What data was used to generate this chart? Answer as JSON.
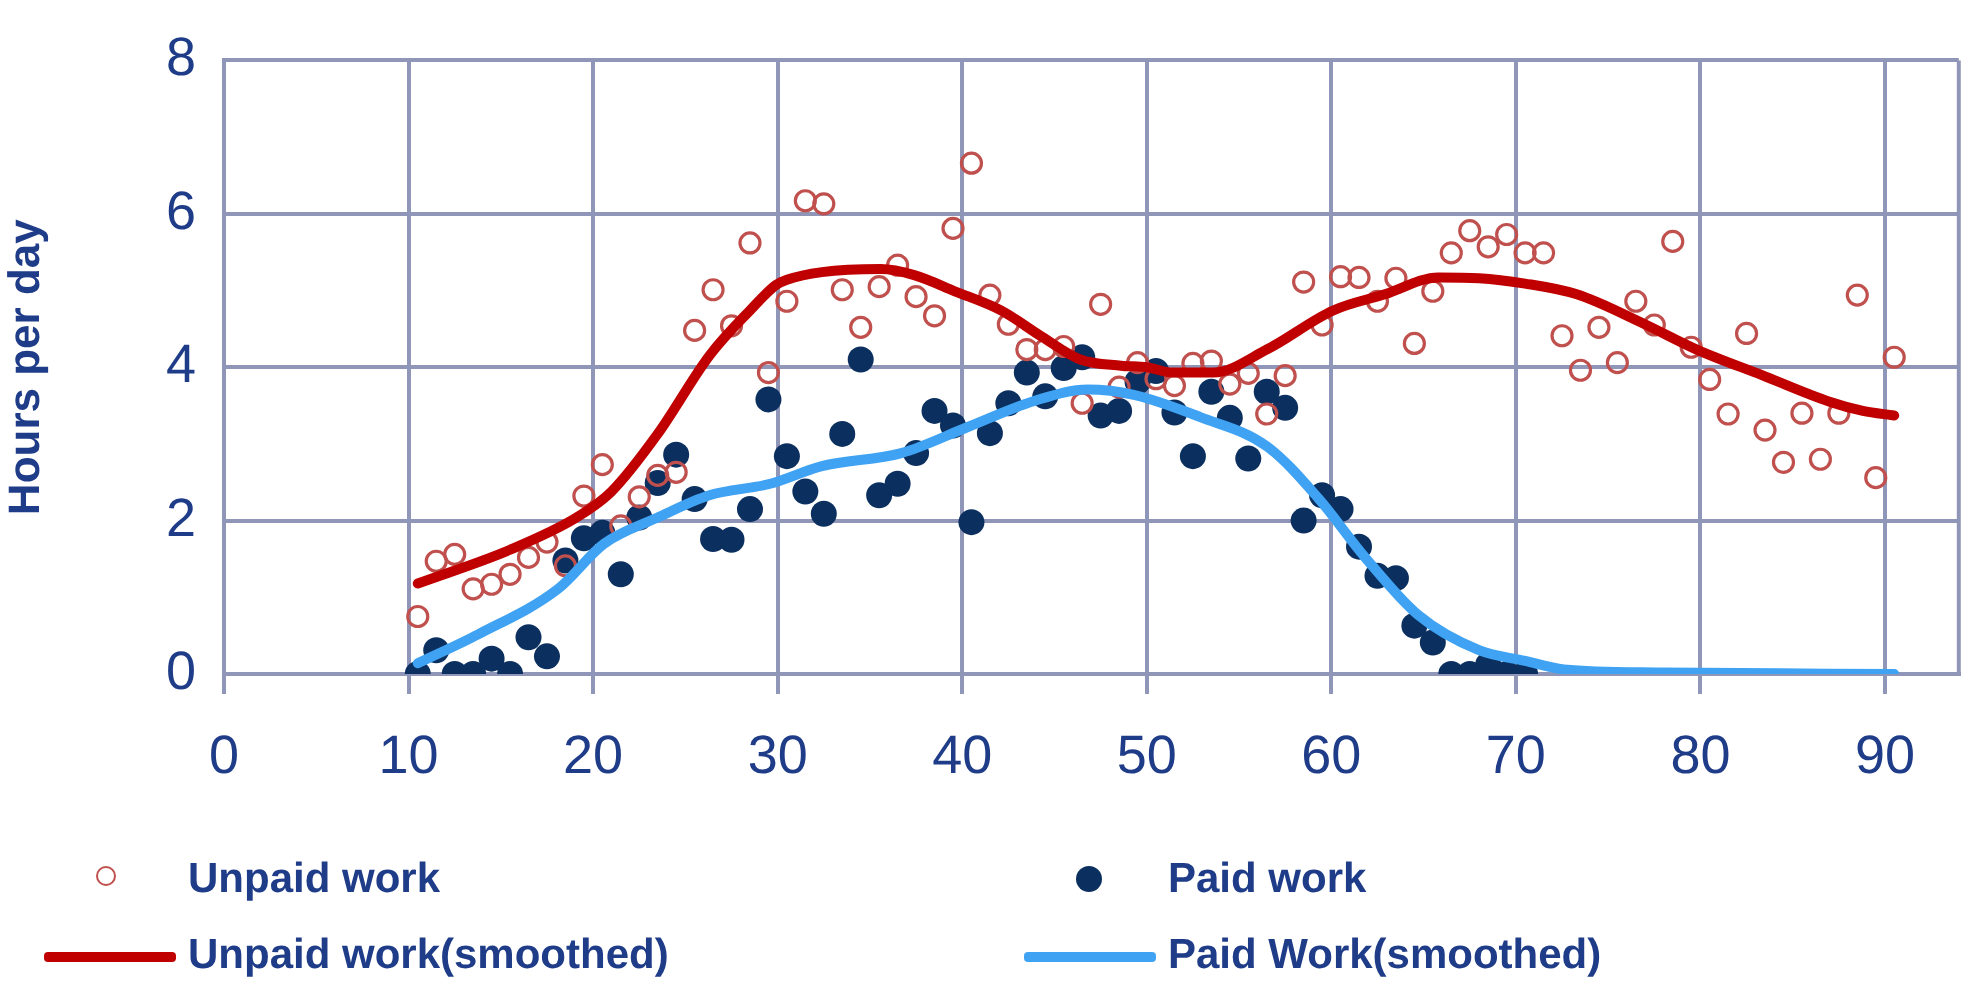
{
  "chart_data": {
    "type": "scatter",
    "ylabel": "Hours per day",
    "xlim": [
      0,
      94
    ],
    "xticks": [
      0,
      10,
      20,
      30,
      40,
      50,
      60,
      70,
      80,
      90
    ],
    "ylim": [
      0,
      8
    ],
    "yticks": [
      0,
      2,
      4,
      6,
      8
    ],
    "grid": true,
    "legend": "bottom",
    "series": [
      {
        "name": "Unpaid work",
        "marker": "circle",
        "color": "#c0504d",
        "x": [
          10.5,
          11.5,
          12.5,
          13.5,
          14.5,
          15.5,
          16.5,
          17.5,
          18.5,
          19.5,
          20.5,
          21.5,
          22.5,
          23.5,
          24.5,
          25.5,
          26.5,
          27.5,
          28.5,
          29.5,
          30.5,
          31.5,
          32.5,
          33.5,
          34.5,
          35.5,
          36.5,
          37.5,
          38.5,
          39.5,
          40.5,
          41.5,
          42.5,
          43.5,
          44.5,
          45.5,
          46.5,
          47.5,
          48.5,
          49.5,
          50.5,
          51.5,
          52.5,
          53.5,
          54.5,
          55.5,
          56.5,
          57.5,
          58.5,
          59.5,
          60.5,
          61.5,
          62.5,
          63.5,
          64.5,
          65.5,
          66.5,
          67.5,
          68.5,
          69.5,
          70.5,
          71.5,
          72.5,
          73.5,
          74.5,
          75.5,
          76.5,
          77.5,
          78.5,
          79.5,
          80.5,
          81.5,
          82.5,
          83.5,
          84.5,
          85.5,
          86.5,
          87.5,
          88.5,
          89.5,
          90.5
        ],
        "values": [
          0.75,
          1.47,
          1.56,
          1.11,
          1.17,
          1.3,
          1.52,
          1.72,
          1.41,
          2.32,
          2.73,
          1.93,
          2.31,
          2.59,
          2.63,
          4.48,
          5.01,
          4.54,
          5.62,
          3.93,
          4.86,
          6.17,
          6.13,
          5.01,
          4.52,
          5.05,
          5.33,
          4.92,
          4.67,
          5.81,
          6.66,
          4.94,
          4.56,
          4.23,
          4.23,
          4.27,
          3.53,
          4.82,
          3.74,
          4.06,
          3.85,
          3.76,
          4.05,
          4.08,
          3.78,
          3.92,
          3.39,
          3.89,
          5.11,
          4.55,
          5.18,
          5.17,
          4.86,
          5.16,
          4.31,
          4.99,
          5.49,
          5.78,
          5.57,
          5.73,
          5.49,
          5.49,
          4.41,
          3.96,
          4.52,
          4.06,
          4.86,
          4.55,
          5.64,
          4.26,
          3.84,
          3.39,
          4.44,
          3.18,
          2.76,
          3.4,
          2.8,
          3.4,
          4.94,
          2.56,
          4.13
        ]
      },
      {
        "name": "Paid work",
        "marker": "circle",
        "color": "#0b2f5e",
        "x": [
          10.5,
          11.5,
          12.5,
          13.5,
          14.5,
          15.5,
          16.5,
          17.5,
          18.5,
          19.5,
          20.5,
          21.5,
          22.5,
          23.5,
          24.5,
          25.5,
          26.5,
          27.5,
          28.5,
          29.5,
          30.5,
          31.5,
          32.5,
          33.5,
          34.5,
          35.5,
          36.5,
          37.5,
          38.5,
          39.5,
          40.5,
          41.5,
          42.5,
          43.5,
          44.5,
          45.5,
          46.5,
          47.5,
          48.5,
          49.5,
          50.5,
          51.5,
          52.5,
          53.5,
          54.5,
          55.5,
          56.5,
          57.5,
          58.5,
          59.5,
          60.5,
          61.5,
          62.5,
          63.5,
          64.5,
          65.5,
          66.5,
          67.5,
          68.5,
          69.5,
          70.5
        ],
        "values": [
          0,
          0.31,
          0,
          0,
          0.2,
          0,
          0.48,
          0.23,
          1.48,
          1.77,
          1.84,
          1.3,
          2.04,
          2.49,
          2.86,
          2.28,
          1.76,
          1.75,
          2.15,
          3.58,
          2.84,
          2.38,
          2.09,
          3.13,
          4.1,
          2.33,
          2.48,
          2.88,
          3.43,
          3.24,
          1.98,
          3.14,
          3.53,
          3.93,
          3.62,
          3.99,
          4.13,
          3.37,
          3.43,
          3.81,
          3.95,
          3.41,
          2.84,
          3.68,
          3.34,
          2.81,
          3.68,
          3.47,
          2,
          2.33,
          2.15,
          1.66,
          1.28,
          1.25,
          0.63,
          0.41,
          0,
          0,
          0.12,
          0,
          0
        ]
      },
      {
        "name": "Unpaid work(smoothed)",
        "type": "line",
        "marker": "none",
        "color": "#c00000",
        "x": [
          10.5,
          15.5,
          19.1,
          21,
          23.5,
          26.3,
          28.5,
          29.9,
          30.5,
          32.4,
          35.6,
          37.4,
          39.6,
          42.1,
          44.3,
          46.4,
          48.6,
          50,
          51.4,
          53.6,
          56.5,
          60.1,
          62.9,
          65.8,
          68,
          70.5,
          73.3,
          76.9,
          79.8,
          83.4,
          87,
          88.8,
          90.5
        ],
        "values": [
          1.18,
          1.62,
          2.04,
          2.38,
          3.13,
          4.15,
          4.74,
          5.07,
          5.14,
          5.24,
          5.28,
          5.2,
          4.99,
          4.74,
          4.4,
          4.1,
          4.02,
          4,
          3.93,
          3.93,
          4.23,
          4.74,
          4.95,
          5.17,
          5.16,
          5.09,
          4.95,
          4.57,
          4.23,
          3.89,
          3.55,
          3.43,
          3.37
        ]
      },
      {
        "name": "Paid Work(smoothed)",
        "type": "line",
        "marker": "none",
        "color": "#3fa2f2",
        "x": [
          10.5,
          13.8,
          18.1,
          20.6,
          23.5,
          26.3,
          29.6,
          32.4,
          36.7,
          40.3,
          43.9,
          46.8,
          49.3,
          52.9,
          56.5,
          59.3,
          61.8,
          64.7,
          68,
          70.5,
          72.6,
          77.8,
          90.5
        ],
        "values": [
          0.14,
          0.52,
          1.11,
          1.7,
          2.04,
          2.33,
          2.48,
          2.71,
          2.88,
          3.22,
          3.56,
          3.71,
          3.64,
          3.35,
          2.97,
          2.29,
          1.53,
          0.77,
          0.31,
          0.17,
          0.06,
          0.02,
          0
        ]
      }
    ]
  }
}
